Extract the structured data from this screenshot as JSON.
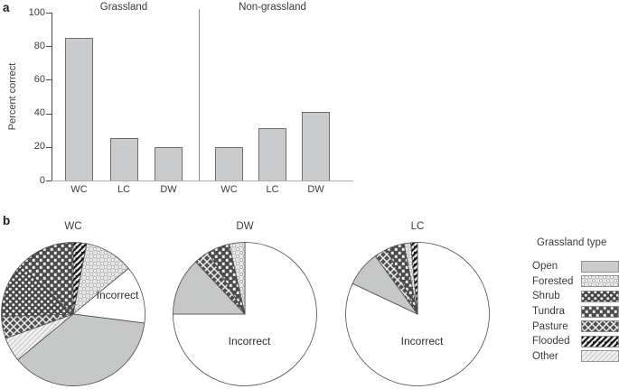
{
  "panel_a": {
    "label": "a"
  },
  "panel_b": {
    "label": "b"
  },
  "chart_data": [
    {
      "type": "bar",
      "ylabel": "Percent correct",
      "ylim": [
        0,
        100
      ],
      "yticks": [
        0,
        20,
        40,
        60,
        80,
        100
      ],
      "grid": false,
      "groups": [
        {
          "label": "Grassland",
          "categories": [
            "WC",
            "LC",
            "DW"
          ],
          "values": [
            85,
            25,
            20
          ]
        },
        {
          "label": "Non-grassland",
          "categories": [
            "WC",
            "LC",
            "DW"
          ],
          "values": [
            20,
            31,
            41
          ]
        }
      ],
      "bar_color": "#c9cbcc"
    },
    {
      "type": "pie",
      "title": "WC",
      "start": "top",
      "direction": "clockwise",
      "slices": [
        {
          "name": "Flooded",
          "pct": 3
        },
        {
          "name": "Forested",
          "pct": 11
        },
        {
          "name": "Incorrect",
          "pct": 13
        },
        {
          "name": "Open",
          "pct": 37
        },
        {
          "name": "Other",
          "pct": 5.5
        },
        {
          "name": "Pasture",
          "pct": 5
        },
        {
          "name": "Shrub",
          "pct": 12.5
        },
        {
          "name": "Tundra",
          "pct": 13
        }
      ],
      "wedge_label": "Incorrect",
      "label_pos": [
        131,
        61
      ]
    },
    {
      "type": "pie",
      "title": "DW",
      "start": "top",
      "direction": "clockwise",
      "slices": [
        {
          "name": "Incorrect",
          "pct": 75
        },
        {
          "name": "Open",
          "pct": 13
        },
        {
          "name": "Pasture",
          "pct": 3.5
        },
        {
          "name": "Tundra",
          "pct": 5
        },
        {
          "name": "Forested",
          "pct": 3.5
        }
      ],
      "wedge_label": "Incorrect",
      "label_pos": [
        87,
        112
      ]
    },
    {
      "type": "pie",
      "title": "LC",
      "start": "top",
      "direction": "clockwise",
      "slices": [
        {
          "name": "Incorrect",
          "pct": 82
        },
        {
          "name": "Open",
          "pct": 8
        },
        {
          "name": "Pasture",
          "pct": 3
        },
        {
          "name": "Tundra",
          "pct": 4
        },
        {
          "name": "Forested",
          "pct": 1.5
        },
        {
          "name": "Flooded",
          "pct": 1.5
        }
      ],
      "wedge_label": "Incorrect",
      "label_pos": [
        87,
        112
      ]
    }
  ],
  "legend": {
    "title": "Grassland type",
    "items": [
      {
        "label": "Open",
        "pattern": "open"
      },
      {
        "label": "Forested",
        "pattern": "forested"
      },
      {
        "label": "Shrub",
        "pattern": "shrub"
      },
      {
        "label": "Tundra",
        "pattern": "tundra"
      },
      {
        "label": "Pasture",
        "pattern": "pasture"
      },
      {
        "label": "Flooded",
        "pattern": "flooded"
      },
      {
        "label": "Other",
        "pattern": "other"
      }
    ]
  },
  "colors": {
    "bar_fill": "#c9cbcc",
    "bar_border": "#6e6e6e",
    "open_fill": "#c6c8c8",
    "axis": "#4a4a4a",
    "baseline": "#a9acae",
    "text": "#3a3a3a"
  }
}
